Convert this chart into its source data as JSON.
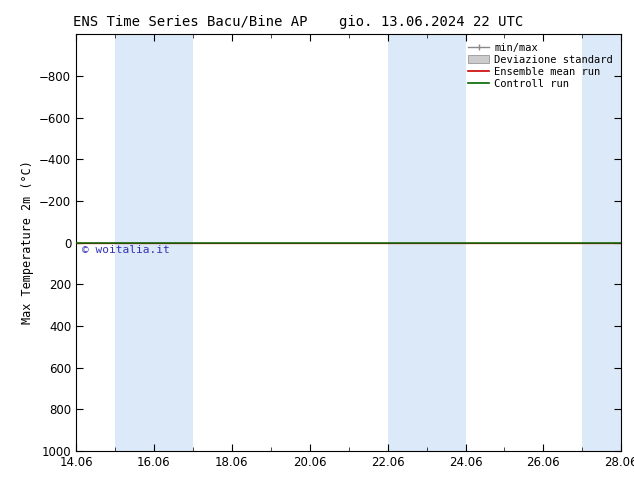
{
  "title_left": "ENS Time Series Bacu/Bine AP",
  "title_right": "gio. 13.06.2024 22 UTC",
  "ylabel": "Max Temperature 2m (°C)",
  "ylim_bottom": 1000,
  "ylim_top": -1000,
  "yticks": [
    -800,
    -600,
    -400,
    -200,
    0,
    200,
    400,
    600,
    800,
    1000
  ],
  "xlim": [
    0,
    14
  ],
  "xtick_positions": [
    0,
    2,
    4,
    6,
    8,
    10,
    12,
    14
  ],
  "xtick_labels": [
    "14.06",
    "16.06",
    "18.06",
    "20.06",
    "22.06",
    "24.06",
    "26.06",
    "28.06"
  ],
  "shaded_spans": [
    [
      1,
      2
    ],
    [
      2,
      3
    ],
    [
      8,
      9
    ],
    [
      9,
      10
    ],
    [
      13,
      14
    ]
  ],
  "shaded_color": "#dce9f8",
  "line_y": 0,
  "ensemble_mean_color": "#cc0000",
  "control_run_color": "#006600",
  "minmax_color": "#888888",
  "std_fill_color": "#cccccc",
  "watermark": "© woitalia.it",
  "watermark_color": "#3333bb",
  "background_color": "#ffffff",
  "legend_entries": [
    "min/max",
    "Deviazione standard",
    "Ensemble mean run",
    "Controll run"
  ],
  "title_fontsize": 10,
  "axis_fontsize": 8.5,
  "legend_fontsize": 7.5
}
